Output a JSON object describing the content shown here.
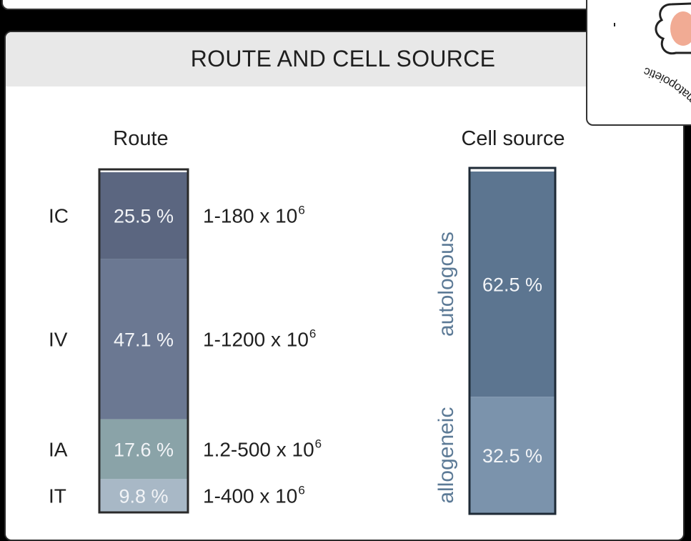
{
  "panel": {
    "title": "ROUTE AND CELL SOURCE"
  },
  "corner_card": {
    "label": "ematopoietic",
    "icon": "cell-cluster-icon"
  },
  "chart_data": [
    {
      "type": "stacked-bar",
      "title": "Route",
      "categories": [
        "IC",
        "IV",
        "IA",
        "IT"
      ],
      "values": [
        25.5,
        47.1,
        17.6,
        9.8
      ],
      "value_labels": [
        "25.5 %",
        "47.1 %",
        "17.6 %",
        "9.8 %"
      ],
      "dose_ranges": [
        "1-180 x 10",
        "1-1200 x 10",
        "1.2-500 x 10",
        "1-400 x 10"
      ],
      "dose_exponent": "6",
      "colors": [
        "#5b6680",
        "#6b7892",
        "#8aa3a8",
        "#a8b8c6"
      ]
    },
    {
      "type": "stacked-bar",
      "title": "Cell source",
      "categories": [
        "autologous",
        "allogeneic"
      ],
      "values": [
        62.5,
        32.5
      ],
      "value_labels": [
        "62.5 %",
        "32.5 %"
      ],
      "colors": [
        "#5c7590",
        "#7b93ac"
      ],
      "label_color": "#5c7a96"
    }
  ]
}
